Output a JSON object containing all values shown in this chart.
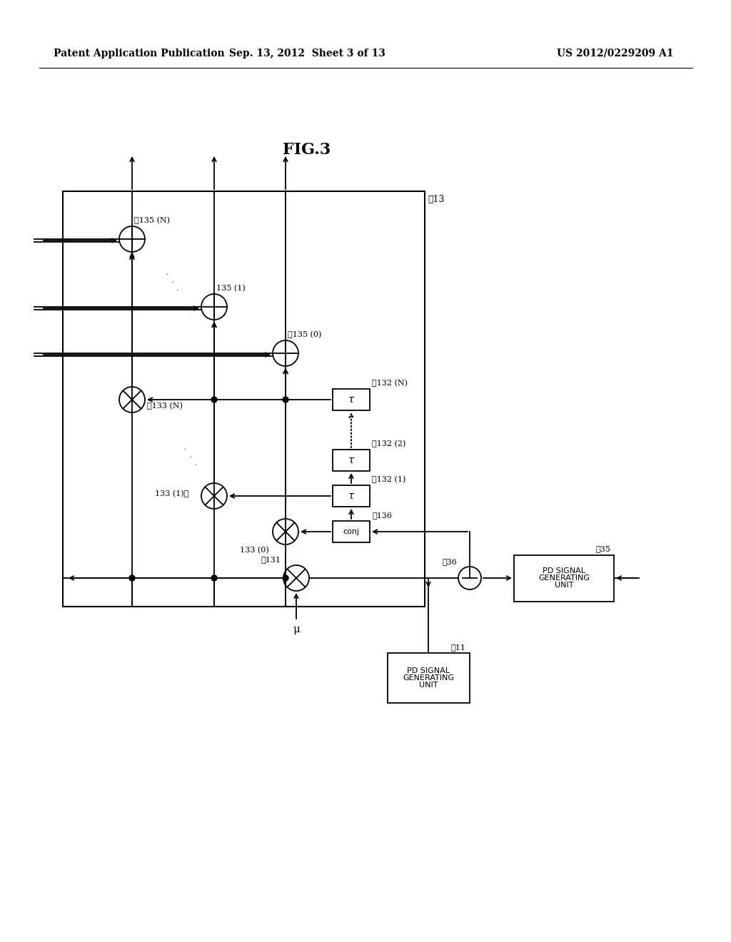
{
  "bg_color": "#ffffff",
  "title": "FIG.3",
  "header_left": "Patent Application Publication",
  "header_center": "Sep. 13, 2012  Sheet 3 of 13",
  "header_right": "US 2012/0229209 A1"
}
